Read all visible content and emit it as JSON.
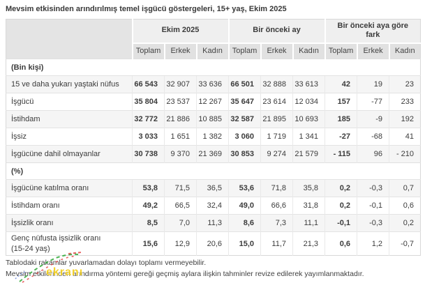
{
  "title": "Mevsim etkisinden arındırılmış temel işgücü göstergeleri, 15+ yaş, Ekim 2025",
  "chart_data": {
    "type": "table",
    "title": "Mevsim etkisinden arındırılmış temel işgücü göstergeleri, 15+ yaş, Ekim 2025",
    "column_groups": [
      {
        "label": "Ekim 2025",
        "sub_columns": [
          "Toplam",
          "Erkek",
          "Kadın"
        ]
      },
      {
        "label": "Bir önceki ay",
        "sub_columns": [
          "Toplam",
          "Erkek",
          "Kadın"
        ]
      },
      {
        "label": "Bir önceki aya göre fark",
        "sub_columns": [
          "Toplam",
          "Erkek",
          "Kadın"
        ]
      }
    ],
    "sections": [
      {
        "header": "(Bin kişi)",
        "rows": [
          {
            "label": "15 ve daha yukarı yaştaki nüfus",
            "values": [
              "66 543",
              "32 907",
              "33 636",
              "66 501",
              "32 888",
              "33 613",
              "42",
              "19",
              "23"
            ]
          },
          {
            "label": "İşgücü",
            "values": [
              "35 804",
              "23 537",
              "12 267",
              "35 647",
              "23 614",
              "12 034",
              "157",
              "-77",
              "233"
            ]
          },
          {
            "label": "İstihdam",
            "values": [
              "32 772",
              "21 886",
              "10 885",
              "32 587",
              "21 895",
              "10 693",
              "185",
              "-9",
              "192"
            ]
          },
          {
            "label": "İşsiz",
            "values": [
              "3 033",
              "1 651",
              "1 382",
              "3 060",
              "1 719",
              "1 341",
              "-27",
              "-68",
              "41"
            ]
          },
          {
            "label": "İşgücüne dahil olmayanlar",
            "values": [
              "30 738",
              "9 370",
              "21 369",
              "30 853",
              "9 274",
              "21 579",
              "- 115",
              "96",
              "- 210"
            ]
          }
        ]
      },
      {
        "header": "(%)",
        "rows": [
          {
            "label": "İşgücüne katılma oranı",
            "values": [
              "53,8",
              "71,5",
              "36,5",
              "53,6",
              "71,8",
              "35,8",
              "0,2",
              "-0,3",
              "0,7"
            ]
          },
          {
            "label": "İstihdam oranı",
            "values": [
              "49,2",
              "66,5",
              "32,4",
              "49,0",
              "66,6",
              "31,8",
              "0,2",
              "-0,1",
              "0,6"
            ]
          },
          {
            "label": "İşsizlik oranı",
            "values": [
              "8,5",
              "7,0",
              "11,3",
              "8,6",
              "7,3",
              "11,1",
              "-0,1",
              "-0,3",
              "0,2"
            ]
          },
          {
            "label": "Genç nüfusta işsizlik oranı\n(15-24 yaş)",
            "values": [
              "15,6",
              "12,9",
              "20,6",
              "15,0",
              "11,7",
              "21,3",
              "0,6",
              "1,2",
              "-0,7"
            ]
          }
        ]
      }
    ],
    "layout": {
      "bold_columns": "Toplam",
      "striped_rows": true
    }
  },
  "footnotes": [
    "Tablodaki rakamlar yuvarlamadan dolayı toplamı vermeyebilir.",
    "Mevsim etkilerinden arındırma yöntemi gereği geçmiş aylara ilişkin tahminler revize edilerek yayımlanmaktadır."
  ],
  "watermark": {
    "text": "ekranı",
    "color": "#f2cf1d",
    "scribble_colors": [
      "#2ea836",
      "#e23b3b",
      "#4a6fd4"
    ]
  }
}
